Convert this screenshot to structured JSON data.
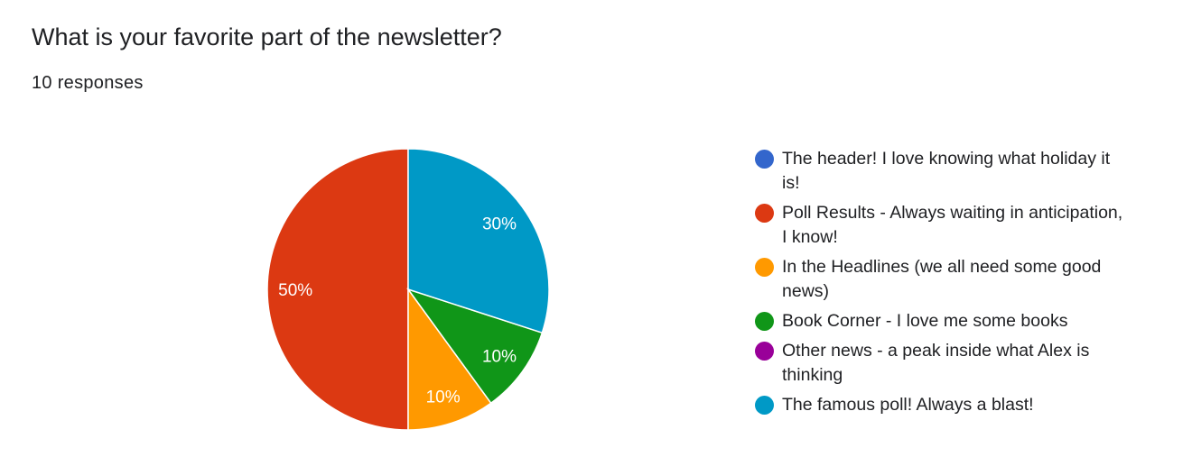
{
  "question": {
    "title": "What is your favorite part of the newsletter?",
    "responses_label": "10 responses"
  },
  "chart_data": {
    "type": "pie",
    "title": "What is your favorite part of the newsletter?",
    "total_responses": 10,
    "legend_position": "right",
    "series": [
      {
        "name": "The header! I love knowing what holiday it is!",
        "value": 0,
        "percent_label": "",
        "color": "#3366cc"
      },
      {
        "name": "Poll Results - Always waiting in anticipation, I know!",
        "value": 5,
        "percent_label": "50%",
        "color": "#dc3912"
      },
      {
        "name": "In the Headlines (we all need some good news)",
        "value": 1,
        "percent_label": "10%",
        "color": "#ff9900"
      },
      {
        "name": "Book Corner - I love me some books",
        "value": 1,
        "percent_label": "10%",
        "color": "#109618"
      },
      {
        "name": "Other news - a peak inside what Alex is thinking",
        "value": 0,
        "percent_label": "",
        "color": "#990099"
      },
      {
        "name": "The famous poll! Always a blast!",
        "value": 3,
        "percent_label": "30%",
        "color": "#0099c6"
      }
    ]
  }
}
